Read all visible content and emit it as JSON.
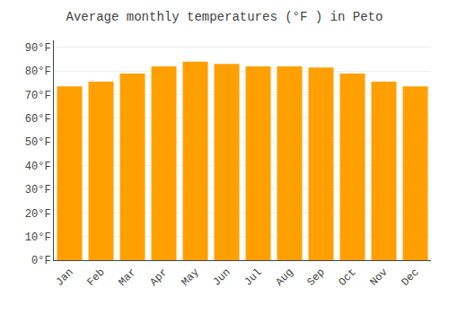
{
  "chart_data": {
    "type": "bar",
    "title": "Average monthly temperatures (°F ) in Peto",
    "categories": [
      "Jan",
      "Feb",
      "Mar",
      "Apr",
      "May",
      "Jun",
      "Jul",
      "Aug",
      "Sep",
      "Oct",
      "Nov",
      "Dec"
    ],
    "values": [
      73.5,
      75.5,
      79.0,
      82.0,
      84.0,
      83.0,
      82.0,
      82.0,
      81.5,
      79.0,
      75.5,
      73.5
    ],
    "color": "#FFA000",
    "ylim": [
      0,
      93
    ],
    "yticks": [
      {
        "value": 0,
        "label": "0°F"
      },
      {
        "value": 10,
        "label": "10°F"
      },
      {
        "value": 20,
        "label": "20°F"
      },
      {
        "value": 30,
        "label": "30°F"
      },
      {
        "value": 40,
        "label": "40°F"
      },
      {
        "value": 50,
        "label": "50°F"
      },
      {
        "value": 60,
        "label": "60°F"
      },
      {
        "value": 70,
        "label": "70°F"
      },
      {
        "value": 80,
        "label": "80°F"
      },
      {
        "value": 90,
        "label": "90°F"
      }
    ],
    "grid": true
  }
}
